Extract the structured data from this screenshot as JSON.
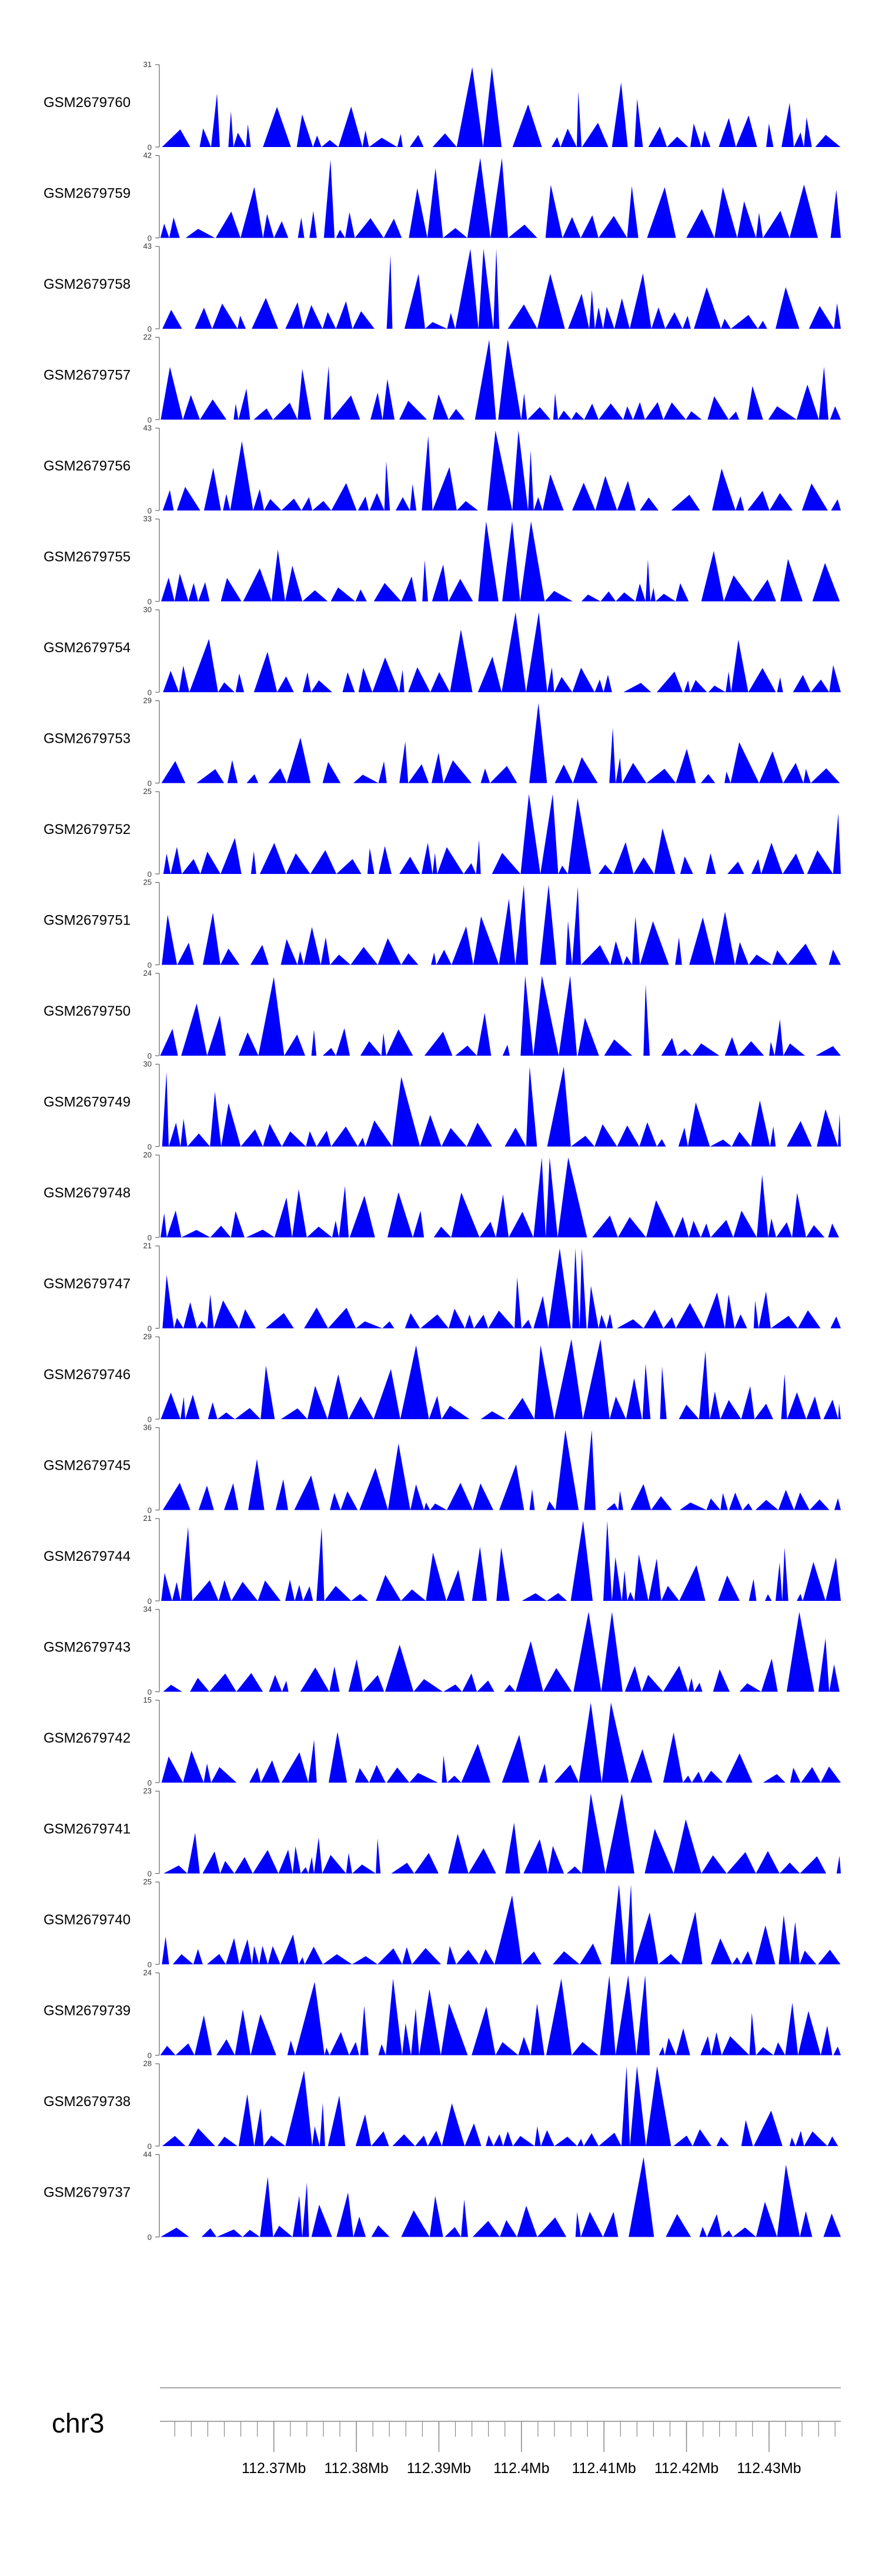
{
  "chart_data": {
    "type": "area",
    "title": "",
    "x_unit": "Mb",
    "chromosome": "chr3",
    "xlim_mb": [
      112.3562,
      112.4387
    ],
    "x_ticks_mb": [
      112.37,
      112.38,
      112.39,
      112.4,
      112.41,
      112.42,
      112.43
    ],
    "x_tick_labels": [
      "112.37Mb",
      "112.38Mb",
      "112.39Mb",
      "112.4Mb",
      "112.41Mb",
      "112.42Mb",
      "112.43Mb"
    ],
    "minor_tick_step_mb": 0.002,
    "fill_color": "#0000ff",
    "tracks": [
      {
        "name": "GSM2679760",
        "ymax": 31,
        "ymin": 0,
        "seed": 760
      },
      {
        "name": "GSM2679759",
        "ymax": 42,
        "ymin": 0,
        "seed": 759
      },
      {
        "name": "GSM2679758",
        "ymax": 43,
        "ymin": 0,
        "seed": 758
      },
      {
        "name": "GSM2679757",
        "ymax": 22,
        "ymin": 0,
        "seed": 757
      },
      {
        "name": "GSM2679756",
        "ymax": 43,
        "ymin": 0,
        "seed": 756
      },
      {
        "name": "GSM2679755",
        "ymax": 33,
        "ymin": 0,
        "seed": 755
      },
      {
        "name": "GSM2679754",
        "ymax": 30,
        "ymin": 0,
        "seed": 754
      },
      {
        "name": "GSM2679753",
        "ymax": 29,
        "ymin": 0,
        "seed": 753
      },
      {
        "name": "GSM2679752",
        "ymax": 25,
        "ymin": 0,
        "seed": 752
      },
      {
        "name": "GSM2679751",
        "ymax": 25,
        "ymin": 0,
        "seed": 751
      },
      {
        "name": "GSM2679750",
        "ymax": 24,
        "ymin": 0,
        "seed": 750
      },
      {
        "name": "GSM2679749",
        "ymax": 30,
        "ymin": 0,
        "seed": 749
      },
      {
        "name": "GSM2679748",
        "ymax": 20,
        "ymin": 0,
        "seed": 748
      },
      {
        "name": "GSM2679747",
        "ymax": 21,
        "ymin": 0,
        "seed": 747
      },
      {
        "name": "GSM2679746",
        "ymax": 29,
        "ymin": 0,
        "seed": 746
      },
      {
        "name": "GSM2679745",
        "ymax": 36,
        "ymin": 0,
        "seed": 745
      },
      {
        "name": "GSM2679744",
        "ymax": 21,
        "ymin": 0,
        "seed": 744
      },
      {
        "name": "GSM2679743",
        "ymax": 34,
        "ymin": 0,
        "seed": 743
      },
      {
        "name": "GSM2679742",
        "ymax": 15,
        "ymin": 0,
        "seed": 742
      },
      {
        "name": "GSM2679741",
        "ymax": 23,
        "ymin": 0,
        "seed": 741
      },
      {
        "name": "GSM2679740",
        "ymax": 25,
        "ymin": 0,
        "seed": 740
      },
      {
        "name": "GSM2679739",
        "ymax": 24,
        "ymin": 0,
        "seed": 739
      },
      {
        "name": "GSM2679738",
        "ymax": 28,
        "ymin": 0,
        "seed": 738
      },
      {
        "name": "GSM2679737",
        "ymax": 44,
        "ymin": 0,
        "seed": 737
      }
    ]
  }
}
